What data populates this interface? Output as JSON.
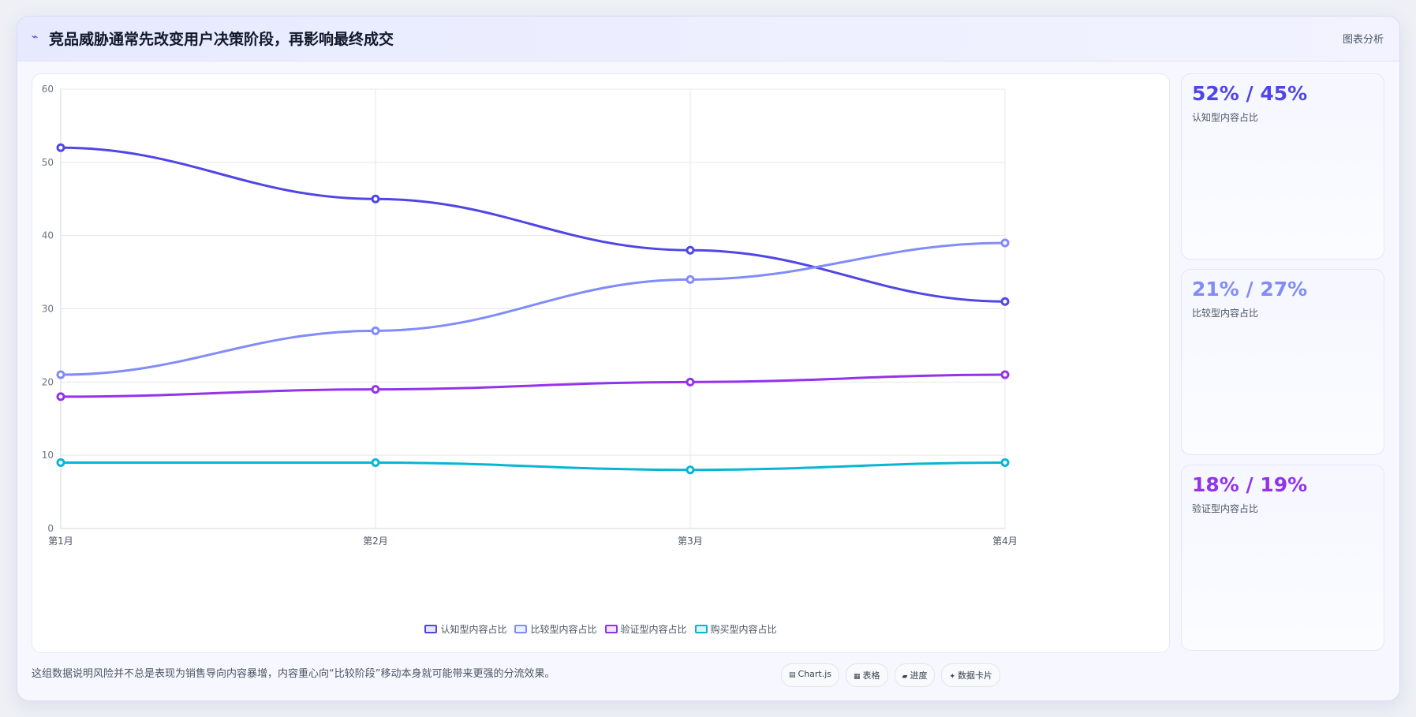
{
  "header": {
    "icon": "trend-line-icon",
    "title": "竞品威胁通常先改变用户决策阶段，再影响最终成交",
    "tag": "图表分析"
  },
  "chart_data": {
    "type": "line",
    "categories": [
      "第1月",
      "第2月",
      "第3月",
      "第4月"
    ],
    "ylim": [
      0,
      60
    ],
    "yticks": [
      0,
      10,
      20,
      30,
      40,
      50,
      60
    ],
    "grid": true,
    "legend_position": "bottom",
    "series": [
      {
        "name": "认知型内容占比",
        "values": [
          52,
          45,
          38,
          31
        ],
        "color": "#4f46e5"
      },
      {
        "name": "比较型内容占比",
        "values": [
          21,
          27,
          34,
          39
        ],
        "color": "#818cf8"
      },
      {
        "name": "验证型内容占比",
        "values": [
          18,
          19,
          20,
          21
        ],
        "color": "#9333ea"
      },
      {
        "name": "购买型内容占比",
        "values": [
          9,
          9,
          8,
          9
        ],
        "color": "#06b6d4"
      }
    ]
  },
  "stats": [
    {
      "value": "52% / 45%",
      "label": "认知型内容占比",
      "color": "#4f46e5"
    },
    {
      "value": "21% / 27%",
      "label": "比较型内容占比",
      "color": "#818cf8"
    },
    {
      "value": "18% / 19%",
      "label": "验证型内容占比",
      "color": "#9333ea"
    }
  ],
  "footer": {
    "note": "这组数据说明风险并不总是表现为销售导向内容暴增，内容重心向“比较阶段”移动本身就可能带来更强的分流效果。"
  },
  "toolbar": [
    {
      "icon": "chart-icon",
      "glyph": "▤",
      "label": "Chart.js"
    },
    {
      "icon": "table-icon",
      "glyph": "▦",
      "label": "表格"
    },
    {
      "icon": "progress-icon",
      "glyph": "▰",
      "label": "进度"
    },
    {
      "icon": "card-icon",
      "glyph": "✦",
      "label": "数据卡片"
    }
  ]
}
